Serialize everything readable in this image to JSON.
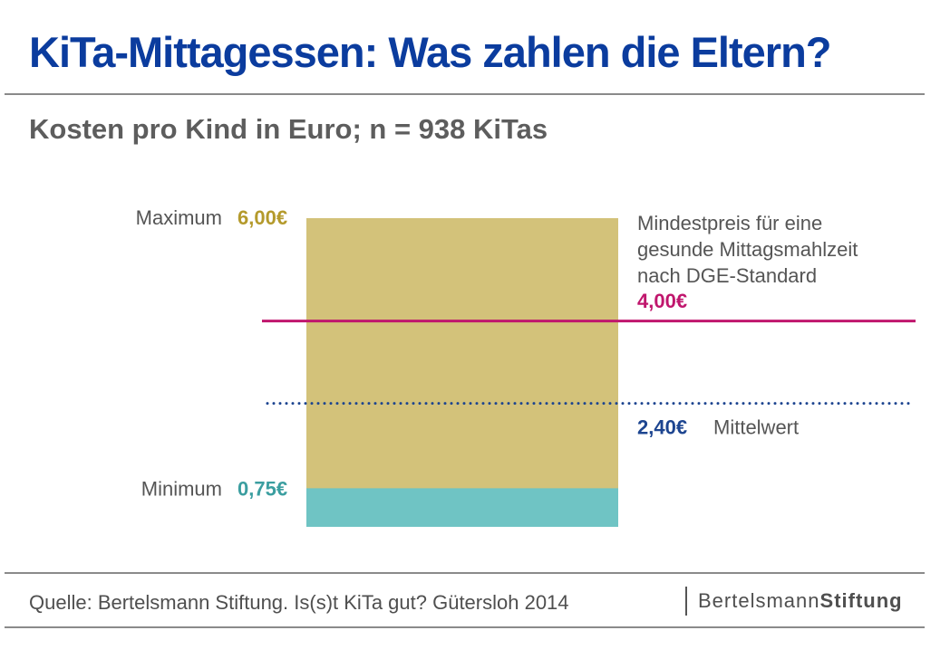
{
  "title": "KiTa-Mittagessen: Was zahlen die Eltern?",
  "subtitle": "Kosten pro Kind in Euro; n = 938 KiTas",
  "source": "Quelle: Bertelsmann Stiftung. Is(s)t KiTa gut? Gütersloh 2014",
  "logo": {
    "name_regular": "Bertelsmann",
    "name_bold": "Stiftung"
  },
  "colors": {
    "title": "#0b3c9e",
    "range_bar": "#d3c27a",
    "minimum_bar": "#6fc4c4",
    "maximum_value": "#b49a2c",
    "minimum_value": "#3b9ea0",
    "dge_line": "#c0166d",
    "mean_line": "#1d4590",
    "label_text": "#555555"
  },
  "chart_data": {
    "type": "bar",
    "unit": "Euro",
    "ylim": [
      0,
      6
    ],
    "maximum": {
      "label": "Maximum",
      "value": 6.0,
      "value_text": "6,00€"
    },
    "minimum": {
      "label": "Minimum",
      "value": 0.75,
      "value_text": "0,75€"
    },
    "reference_lines": [
      {
        "id": "dge",
        "style": "solid",
        "value": 4.0,
        "value_text": "4,00€",
        "label_lines": [
          "Mindestpreis für eine",
          "gesunde Mittagsmahlzeit",
          "nach DGE-Standard"
        ]
      },
      {
        "id": "mean",
        "style": "dotted",
        "value": 2.4,
        "value_text": "2,40€",
        "label": "Mittelwert"
      }
    ]
  }
}
